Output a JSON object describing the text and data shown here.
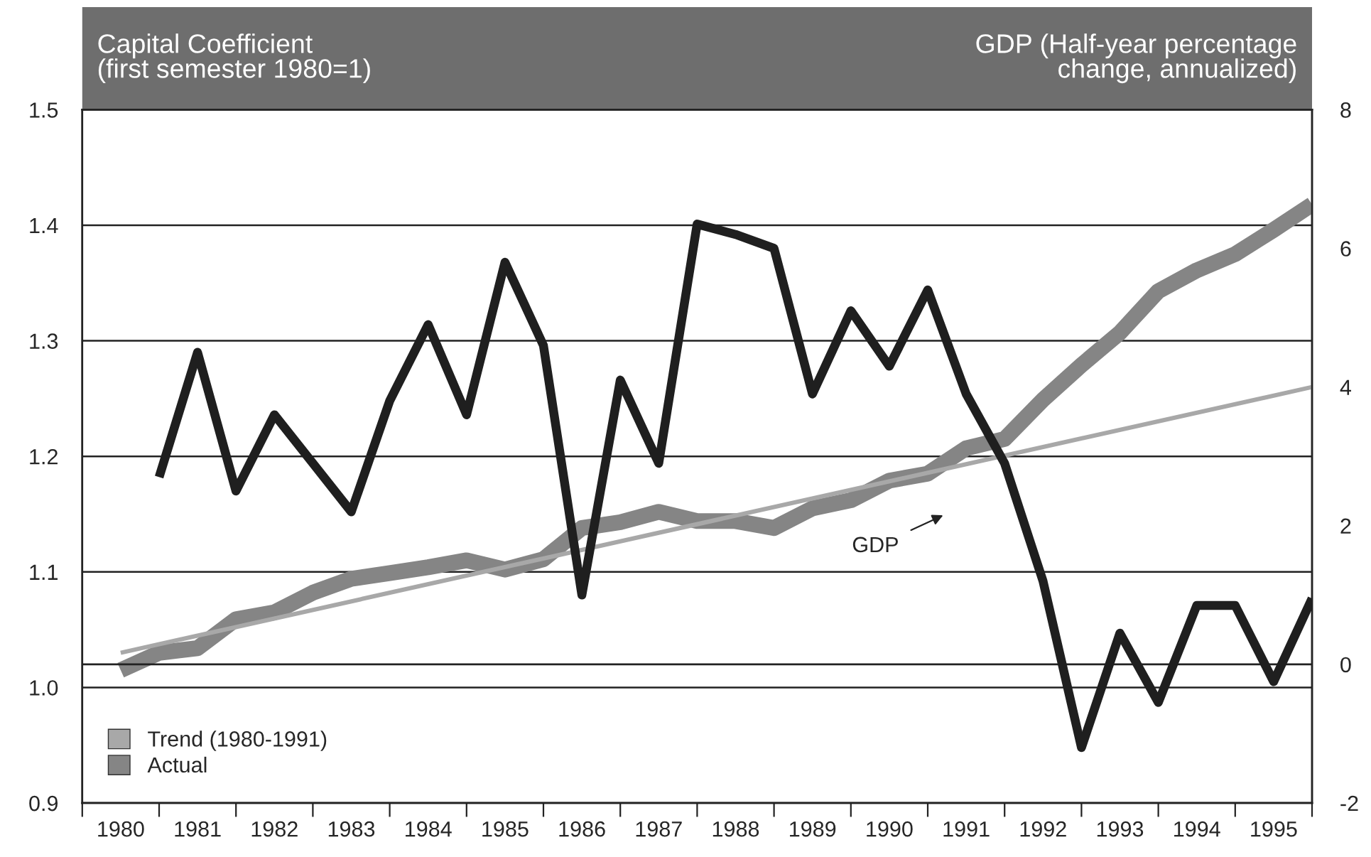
{
  "chart_data": {
    "type": "line",
    "ylabel": "Capital Coefficient\n(first semester 1980=1)",
    "y2label": "GDP (Half-year percentage\nchange, annualized)",
    "xlim": [
      1980,
      1996
    ],
    "xticks": [
      {
        "value": 1980,
        "label": null
      },
      {
        "value": 1980.5,
        "label": "1980"
      },
      {
        "value": 1981,
        "label": null
      },
      {
        "value": 1981.5,
        "label": "1981"
      },
      {
        "value": 1982,
        "label": null
      },
      {
        "value": 1982.5,
        "label": "1982"
      },
      {
        "value": 1983,
        "label": null
      },
      {
        "value": 1983.5,
        "label": "1983"
      },
      {
        "value": 1984,
        "label": null
      },
      {
        "value": 1984.5,
        "label": "1984"
      },
      {
        "value": 1985,
        "label": null
      },
      {
        "value": 1985.5,
        "label": "1985"
      },
      {
        "value": 1986,
        "label": null
      },
      {
        "value": 1986.5,
        "label": "1986"
      },
      {
        "value": 1987,
        "label": null
      },
      {
        "value": 1987.5,
        "label": "1987"
      },
      {
        "value": 1988,
        "label": null
      },
      {
        "value": 1988.5,
        "label": "1988"
      },
      {
        "value": 1989,
        "label": null
      },
      {
        "value": 1989.5,
        "label": "1989"
      },
      {
        "value": 1990,
        "label": null
      },
      {
        "value": 1990.5,
        "label": "1990"
      },
      {
        "value": 1991,
        "label": null
      },
      {
        "value": 1991.5,
        "label": "1991"
      },
      {
        "value": 1992,
        "label": null
      },
      {
        "value": 1992.5,
        "label": "1992"
      },
      {
        "value": 1993,
        "label": null
      },
      {
        "value": 1993.5,
        "label": "1993"
      },
      {
        "value": 1994,
        "label": null
      },
      {
        "value": 1994.5,
        "label": "1994"
      },
      {
        "value": 1995,
        "label": null
      },
      {
        "value": 1995.5,
        "label": "1995"
      },
      {
        "value": 1996,
        "label": null
      }
    ],
    "ylim": [
      0.9,
      1.5
    ],
    "yticks": [
      0.9,
      {
        "value": 1.0,
        "label": "1.0"
      },
      1.1,
      1.2,
      1.3,
      1.4,
      1.5
    ],
    "y2lim": [
      -2,
      8
    ],
    "y2ticks": [
      -2,
      0,
      2,
      4,
      6,
      8
    ],
    "grid": "y",
    "ref_lines": [
      {
        "axis": "y2",
        "value": 0,
        "color": "#222222"
      }
    ],
    "legend": "bottom left",
    "marker": "none",
    "line_style": "solid",
    "annotations": [
      "GDP"
    ],
    "series": [
      {
        "name": "Trend (1980-1991)",
        "color": "#a8a8a8",
        "x": [
          1980.5,
          1996.0
        ],
        "values": [
          1.03,
          1.26
        ]
      },
      {
        "name": "Actual",
        "color": "#858585",
        "x": [
          1980.5,
          1981.0,
          1981.5,
          1982.0,
          1982.5,
          1983.0,
          1983.5,
          1984.0,
          1984.5,
          1985.0,
          1985.5,
          1986.0,
          1986.5,
          1987.0,
          1987.5,
          1988.0,
          1988.5,
          1989.0,
          1989.5,
          1990.0,
          1990.5,
          1991.0,
          1991.5,
          1992.0,
          1992.5,
          1993.0,
          1993.5,
          1994.0,
          1994.5,
          1995.0,
          1995.5,
          1996.0
        ],
        "values": [
          1.015,
          1.03,
          1.034,
          1.059,
          1.065,
          1.082,
          1.094,
          1.099,
          1.104,
          1.11,
          1.102,
          1.111,
          1.138,
          1.143,
          1.152,
          1.144,
          1.144,
          1.138,
          1.155,
          1.162,
          1.179,
          1.185,
          1.207,
          1.215,
          1.249,
          1.279,
          1.307,
          1.343,
          1.361,
          1.375,
          1.396,
          1.418
        ]
      },
      {
        "color": "#1f1f1f",
        "axis": "y2",
        "x": [
          1981.0,
          1981.5,
          1982.0,
          1982.5,
          1983.0,
          1983.5,
          1984.0,
          1984.5,
          1985.0,
          1985.5,
          1986.0,
          1986.5,
          1987.0,
          1987.5,
          1988.0,
          1988.5,
          1989.0,
          1989.5,
          1990.0,
          1990.5,
          1991.0,
          1991.5,
          1992.0,
          1992.5,
          1993.0,
          1993.5,
          1994.0,
          1994.5,
          1995.0,
          1995.5,
          1996.0
        ],
        "values": [
          2.7,
          4.5,
          2.5,
          3.6,
          2.9,
          2.2,
          3.8,
          4.9,
          3.6,
          5.8,
          4.6,
          1.0,
          4.1,
          2.9,
          6.35,
          6.2,
          6.0,
          3.9,
          5.1,
          4.3,
          5.4,
          3.9,
          2.9,
          1.2,
          -1.2,
          0.45,
          -0.55,
          0.85,
          0.85,
          -0.25,
          0.95
        ]
      }
    ]
  }
}
